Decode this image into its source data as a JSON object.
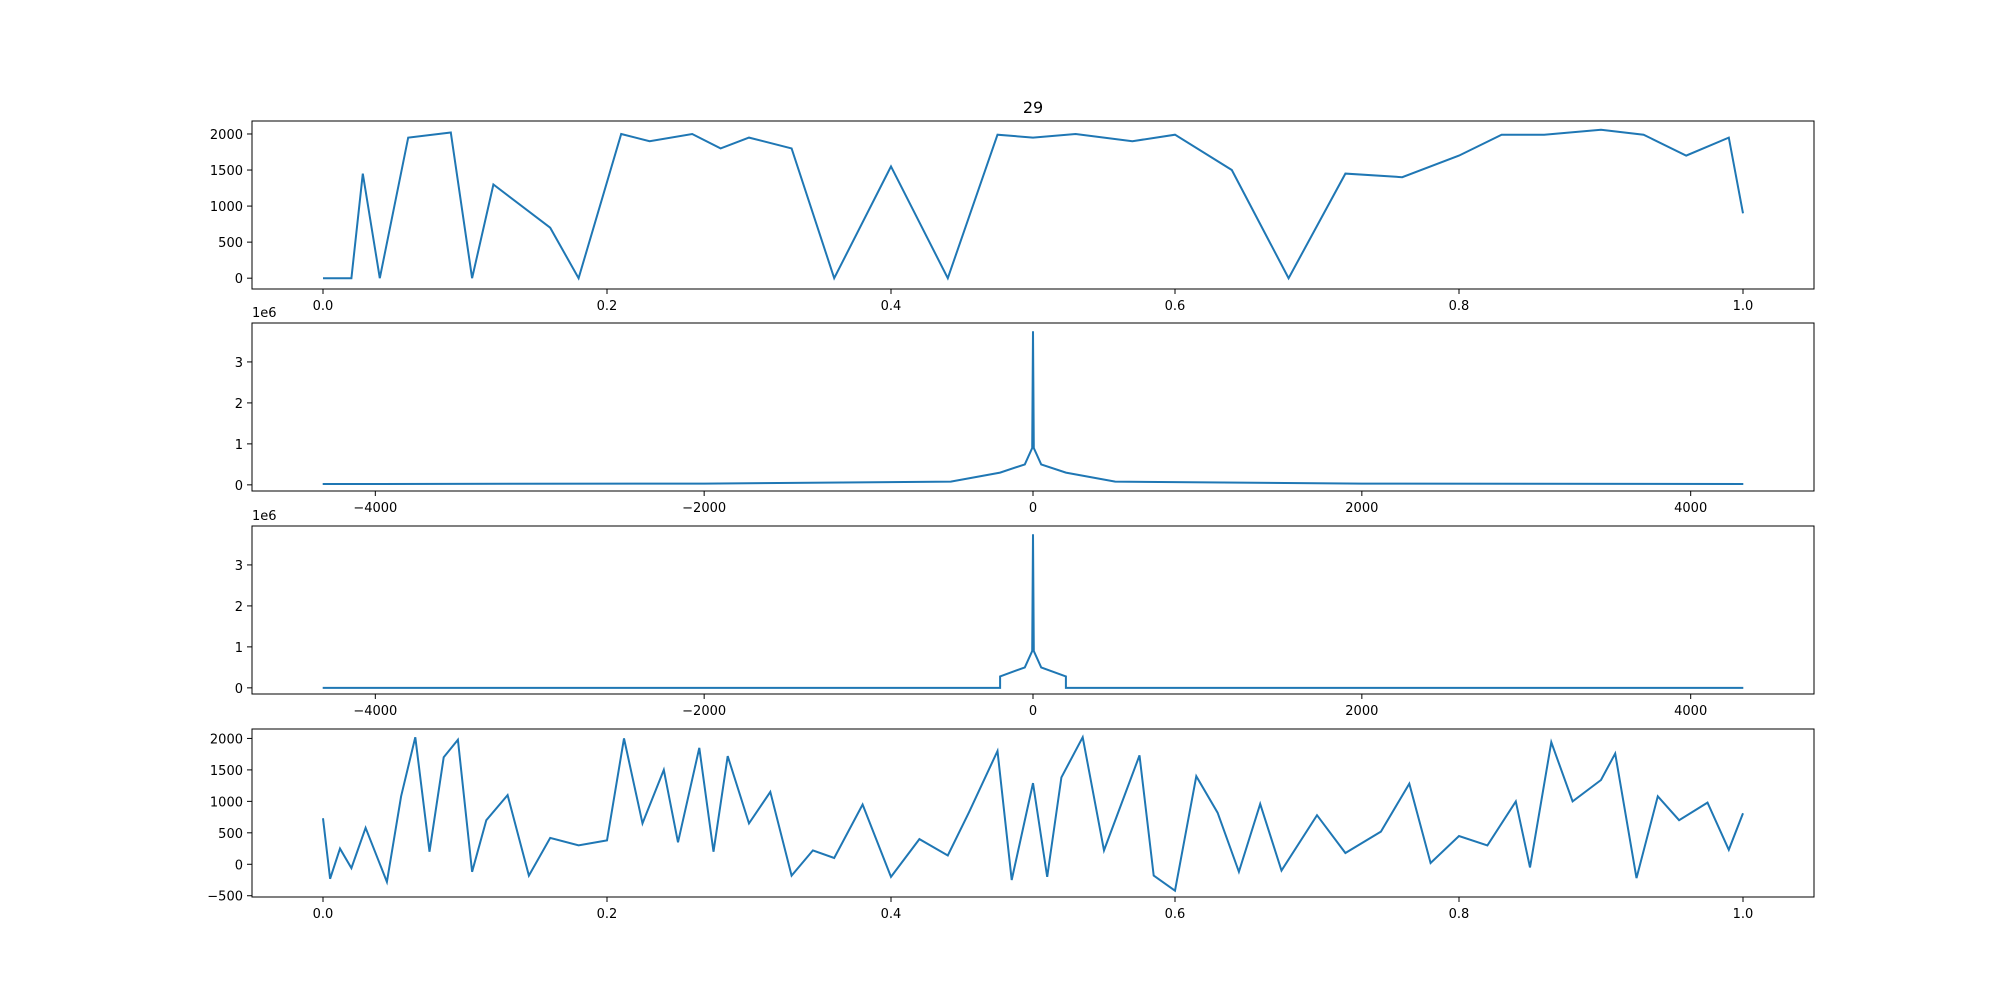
{
  "chart_data": [
    {
      "type": "line",
      "title": "29",
      "xlim": [
        -0.05,
        1.05
      ],
      "ylim": [
        -150,
        2180
      ],
      "xticks": [
        0.0,
        0.2,
        0.4,
        0.6,
        0.8,
        1.0
      ],
      "xtick_labels": [
        "0.0",
        "0.2",
        "0.4",
        "0.6",
        "0.8",
        "1.0"
      ],
      "yticks": [
        0,
        500,
        1000,
        1500,
        2000
      ],
      "ytick_labels": [
        "0",
        "500",
        "1000",
        "1500",
        "2000"
      ],
      "offset_text": "",
      "grid": false,
      "color": "#1f77b4",
      "series": [
        {
          "description": "thresholded activity signal, 0 to ~2000, dense bursts",
          "x": [
            0.0,
            0.02,
            0.028,
            0.04,
            0.06,
            0.09,
            0.105,
            0.12,
            0.16,
            0.18,
            0.21,
            0.23,
            0.26,
            0.28,
            0.3,
            0.33,
            0.36,
            0.4,
            0.44,
            0.475,
            0.5,
            0.53,
            0.57,
            0.6,
            0.64,
            0.68,
            0.72,
            0.76,
            0.8,
            0.83,
            0.86,
            0.9,
            0.93,
            0.96,
            0.99,
            1.0
          ],
          "y": [
            0,
            0,
            1450,
            0,
            1950,
            2020,
            0,
            1300,
            700,
            0,
            2000,
            1900,
            2000,
            1800,
            1950,
            1800,
            0,
            1550,
            0,
            1990,
            1950,
            2000,
            1900,
            1990,
            1500,
            0,
            1450,
            1400,
            1700,
            1990,
            1990,
            2060,
            1990,
            1700,
            1950,
            900
          ]
        }
      ]
    },
    {
      "type": "line",
      "title": "",
      "xlim": [
        -4750,
        4750
      ],
      "ylim": [
        -150000,
        3950000
      ],
      "xticks": [
        -4000,
        -2000,
        0,
        2000,
        4000
      ],
      "xtick_labels": [
        "−4000",
        "−2000",
        "0",
        "2000",
        "4000"
      ],
      "yticks": [
        0,
        1000000,
        2000000,
        3000000
      ],
      "ytick_labels": [
        "0",
        "1",
        "2",
        "3"
      ],
      "offset_text": "1e6",
      "grid": false,
      "color": "#1f77b4",
      "series": [
        {
          "description": "FFT magnitude spectrum, sharp DC peak",
          "x": [
            -4320,
            -2000,
            -500,
            -200,
            -50,
            -5,
            0,
            5,
            50,
            200,
            500,
            2000,
            4320
          ],
          "y": [
            20000,
            30000,
            80000,
            300000,
            500000,
            900000,
            3750000,
            900000,
            500000,
            300000,
            80000,
            30000,
            20000
          ]
        }
      ]
    },
    {
      "type": "line",
      "title": "",
      "xlim": [
        -4750,
        4750
      ],
      "ylim": [
        -150000,
        3950000
      ],
      "xticks": [
        -4000,
        -2000,
        0,
        2000,
        4000
      ],
      "xtick_labels": [
        "−4000",
        "−2000",
        "0",
        "2000",
        "4000"
      ],
      "yticks": [
        0,
        1000000,
        2000000,
        3000000
      ],
      "ytick_labels": [
        "0",
        "1",
        "2",
        "3"
      ],
      "offset_text": "1e6",
      "grid": false,
      "color": "#1f77b4",
      "series": [
        {
          "description": "low-pass filtered spectrum, zero outside +/-200",
          "x": [
            -4320,
            -200,
            -200,
            -50,
            -5,
            0,
            5,
            50,
            200,
            200,
            4320
          ],
          "y": [
            0,
            0,
            280000,
            500000,
            900000,
            3750000,
            900000,
            500000,
            280000,
            0,
            0
          ]
        }
      ]
    },
    {
      "type": "line",
      "title": "",
      "xlim": [
        -0.05,
        1.05
      ],
      "ylim": [
        -520,
        2150
      ],
      "xticks": [
        0.0,
        0.2,
        0.4,
        0.6,
        0.8,
        1.0
      ],
      "xtick_labels": [
        "0.0",
        "0.2",
        "0.4",
        "0.6",
        "0.8",
        "1.0"
      ],
      "yticks": [
        -500,
        0,
        500,
        1000,
        1500,
        2000
      ],
      "ytick_labels": [
        "−500",
        "0",
        "500",
        "1000",
        "1500",
        "2000"
      ],
      "offset_text": "",
      "grid": false,
      "color": "#1f77b4",
      "series": [
        {
          "description": "reconstructed (filtered) signal",
          "x": [
            0.0,
            0.005,
            0.012,
            0.02,
            0.03,
            0.045,
            0.055,
            0.065,
            0.075,
            0.085,
            0.095,
            0.105,
            0.115,
            0.13,
            0.145,
            0.16,
            0.18,
            0.2,
            0.212,
            0.225,
            0.24,
            0.25,
            0.265,
            0.275,
            0.285,
            0.3,
            0.315,
            0.33,
            0.345,
            0.36,
            0.38,
            0.4,
            0.42,
            0.44,
            0.455,
            0.475,
            0.485,
            0.5,
            0.51,
            0.52,
            0.535,
            0.55,
            0.575,
            0.585,
            0.6,
            0.615,
            0.63,
            0.645,
            0.66,
            0.675,
            0.7,
            0.72,
            0.745,
            0.765,
            0.78,
            0.8,
            0.82,
            0.84,
            0.85,
            0.865,
            0.88,
            0.9,
            0.91,
            0.925,
            0.94,
            0.955,
            0.975,
            0.99,
            1.0
          ],
          "y": [
            730,
            -230,
            250,
            -60,
            580,
            -280,
            1080,
            2020,
            200,
            1700,
            1980,
            -120,
            700,
            1100,
            -180,
            420,
            300,
            380,
            2000,
            650,
            1500,
            350,
            1850,
            200,
            1720,
            650,
            1150,
            -180,
            220,
            100,
            950,
            -200,
            400,
            140,
            830,
            1800,
            -250,
            1290,
            -200,
            1380,
            2020,
            220,
            1730,
            -180,
            -420,
            1400,
            820,
            -120,
            960,
            -100,
            780,
            180,
            520,
            1280,
            20,
            450,
            300,
            1000,
            -50,
            1940,
            1000,
            1340,
            1760,
            -220,
            1080,
            700,
            980,
            230,
            810
          ]
        }
      ]
    }
  ]
}
